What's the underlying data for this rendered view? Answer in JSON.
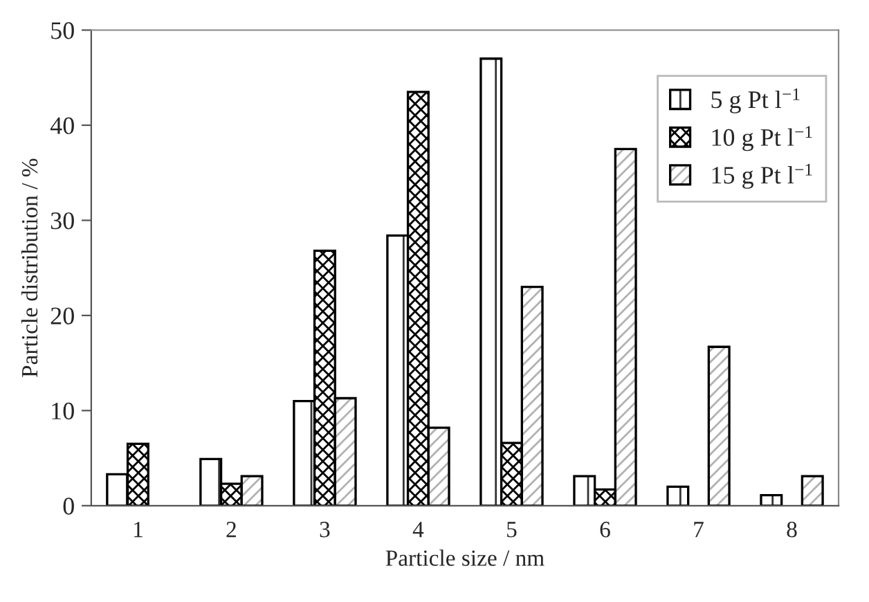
{
  "chart_data": {
    "type": "bar",
    "xlabel": "Particle size / nm",
    "ylabel": "Particle distribution / %",
    "categories": [
      "1",
      "2",
      "3",
      "4",
      "5",
      "6",
      "7",
      "8"
    ],
    "series": [
      {
        "name": "5 g Pt l$^{−1}$",
        "color": "#000000",
        "values": [
          3.3,
          4.9,
          11,
          28.4,
          47,
          3.1,
          2,
          1.1
        ]
      },
      {
        "name": "10 g Pt l$^{−1}$",
        "color": "#000000",
        "values": [
          6.5,
          2.3,
          26.8,
          43.5,
          6.6,
          1.7,
          null,
          null
        ]
      },
      {
        "name": "15 g Pt l$^{−1}$",
        "color": "#000000",
        "values": [
          null,
          3.1,
          11.3,
          8.2,
          23,
          37.5,
          16.7,
          3.1
        ]
      }
    ],
    "ylim": [
      0,
      50
    ],
    "yticks": [
      0,
      10,
      20,
      30,
      40,
      50
    ],
    "grid": false,
    "legend": "top right"
  }
}
